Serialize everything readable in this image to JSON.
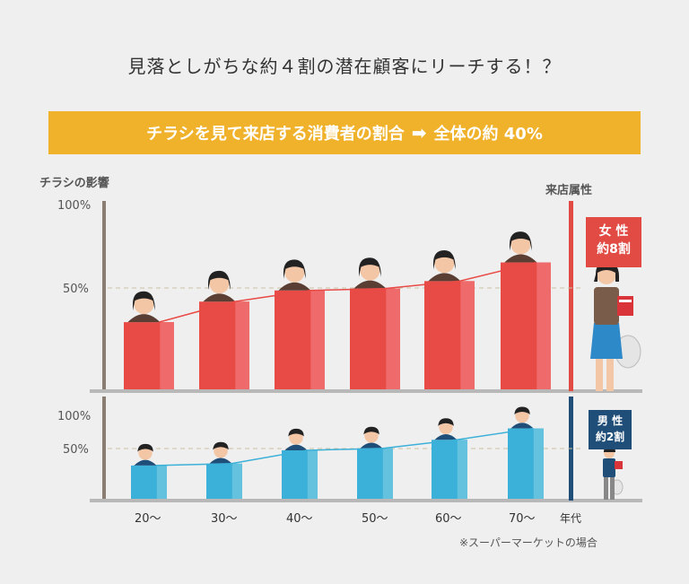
{
  "header": {
    "title": "見落としがちな約４割の潜在顧客にリーチする！？",
    "banner_left": "チラシを見て来店する消費者の割合",
    "banner_arrow": "➡",
    "banner_right": "全体の約 40%"
  },
  "labels": {
    "y_axis_title": "チラシの影響",
    "attr_title": "来店属性",
    "female_badge_line1": "女 性",
    "female_badge_line2": "約8割",
    "male_badge_line1": "男 性",
    "male_badge_line2": "約2割",
    "note": "※スーパーマーケットの場合"
  },
  "colors": {
    "female": "#e84a46",
    "female_light": "#ef6b6b",
    "male": "#3bb0d8",
    "male_light": "#64c2df",
    "banner": "#f0b12b",
    "axis": "#8a7e72"
  },
  "chart_data": [
    {
      "type": "bar",
      "categories": [
        "20～",
        "30～",
        "40～",
        "50～",
        "60～",
        "70～"
      ],
      "values": [
        36,
        47,
        53,
        54,
        58,
        68
      ],
      "ylim": [
        0,
        100
      ],
      "yticks": [
        "100%",
        "50%"
      ],
      "xlabel": "年代",
      "ylabel": "チラシの影響",
      "series_overlay": "line",
      "grid": "50% dashed reference"
    },
    {
      "type": "bar",
      "categories": [
        "20～",
        "30～",
        "40～",
        "50～",
        "60～",
        "70～"
      ],
      "values": [
        35,
        37,
        51,
        53,
        62,
        74
      ],
      "ylim": [
        0,
        100
      ],
      "yticks": [
        "100%",
        "50%"
      ],
      "xlabel": "年代",
      "series_overlay": "line",
      "grid": "50% dashed reference"
    }
  ]
}
